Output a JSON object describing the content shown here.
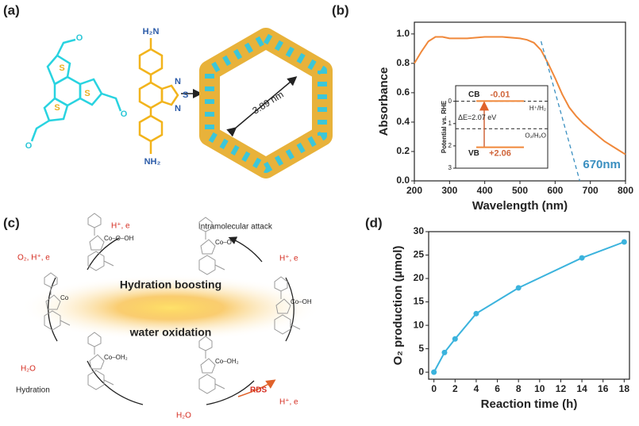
{
  "panel_a": {
    "label": "(a)",
    "aldehyde_atoms": [
      "S",
      "S",
      "S",
      "O",
      "O",
      "O"
    ],
    "amine_atoms": [
      "N",
      "S",
      "N"
    ],
    "amine_top": "H₂N",
    "amine_bottom": "NH₂",
    "pore": "3.89 nm"
  },
  "panel_b_label": "(b)",
  "panel_c": {
    "label": "(c)",
    "center": [
      "Hydration boosting",
      "water oxidation"
    ],
    "steps": [
      "H⁺, e",
      "Intramolecular attack",
      "H⁺, e",
      "O₂, H⁺, e",
      "RDS",
      "H⁺, e",
      "H₂O",
      "Hydration",
      "H₂O"
    ],
    "structures": [
      "Co–O–OH",
      "Co–O",
      "Co",
      "Co–OH",
      "Co–OH₂",
      "Co–OH₂"
    ]
  },
  "panel_d_label": "(d)",
  "chart_data": [
    {
      "type": "line",
      "xlabel": "Wavelength (nm)",
      "ylabel": "Absorbance",
      "x": [
        200,
        220,
        240,
        260,
        280,
        300,
        350,
        400,
        450,
        500,
        520,
        540,
        560,
        580,
        600,
        620,
        640,
        660,
        680,
        700,
        720,
        740,
        760,
        780,
        800
      ],
      "series": [
        {
          "color": "#f0883a",
          "values": [
            0.8,
            0.88,
            0.95,
            0.98,
            0.98,
            0.97,
            0.97,
            0.98,
            0.98,
            0.97,
            0.96,
            0.94,
            0.89,
            0.8,
            0.7,
            0.59,
            0.5,
            0.44,
            0.39,
            0.35,
            0.31,
            0.27,
            0.24,
            0.21,
            0.18
          ]
        }
      ],
      "tangent": {
        "x": [
          560,
          670
        ],
        "y": [
          0.95,
          0
        ],
        "color": "#3a8fc0"
      },
      "annotation": "670nm",
      "xlim": [
        200,
        800
      ],
      "xticks": [
        200,
        300,
        400,
        500,
        600,
        700,
        800
      ],
      "ylim": [
        0,
        1.08
      ],
      "yticks": [
        {
          "value": 0,
          "label": "0.0"
        },
        0.2,
        0.4,
        0.6,
        0.8,
        {
          "value": 1,
          "label": "1.0"
        }
      ],
      "inset": {
        "ylabel": "Potential vs. RHE",
        "ylim": [
          -0.7,
          3
        ],
        "yticks": [
          0,
          1,
          2,
          3
        ],
        "bands": [
          {
            "name": "CB",
            "value": -0.01,
            "value_label": "-0.01"
          },
          {
            "name": "VB",
            "value": 2.06,
            "value_label": "+2.06"
          }
        ],
        "gap": "ΔE=2.07 eV",
        "redox": [
          {
            "name": "H⁺/H₂",
            "value": 0
          },
          {
            "name": "O₂/H₂O",
            "value": 1.23
          }
        ]
      }
    },
    {
      "type": "line",
      "xlabel": "Reaction time (h)",
      "ylabel": "O₂ production (μmol)",
      "x": [
        0,
        1,
        2,
        4,
        8,
        14,
        18
      ],
      "series": [
        {
          "color": "#3bb3dd",
          "values": [
            0,
            4.2,
            7.1,
            12.5,
            18,
            24.4,
            27.8
          ]
        }
      ],
      "xlim": [
        -0.5,
        18.5
      ],
      "xticks": [
        0,
        2,
        4,
        6,
        8,
        10,
        12,
        14,
        16,
        18
      ],
      "ylim": [
        -1.5,
        30
      ],
      "yticks": [
        0,
        5,
        10,
        15,
        20,
        25,
        30
      ]
    }
  ]
}
